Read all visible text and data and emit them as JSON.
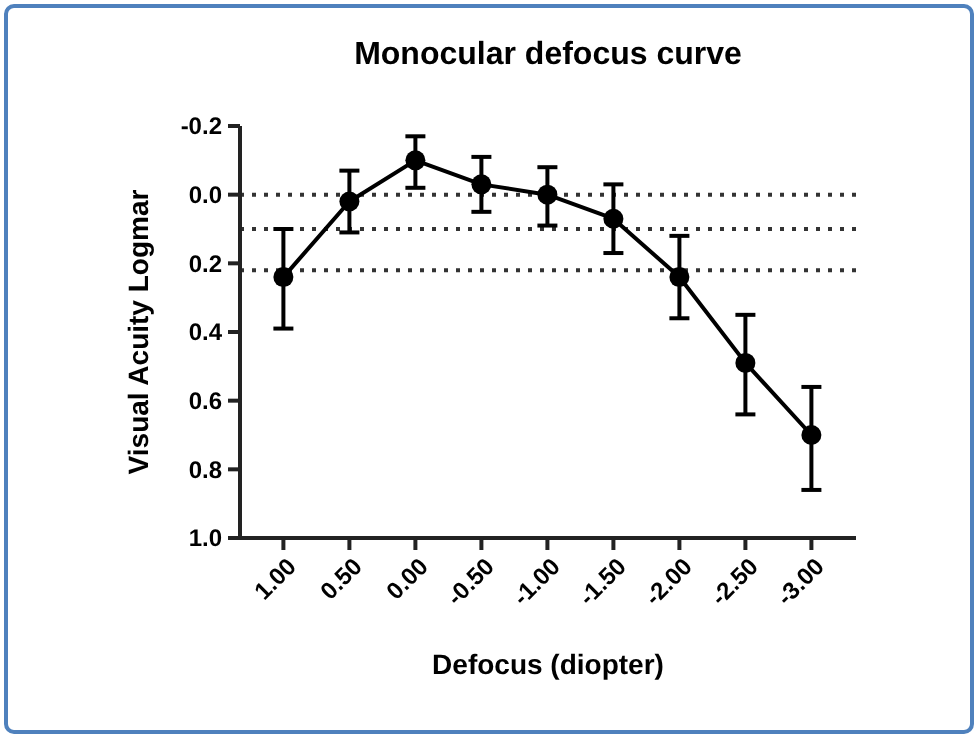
{
  "chart_data": {
    "type": "line",
    "title": "Monocular defocus curve",
    "xlabel": "Defocus (diopter)",
    "ylabel": "Visual Acuity Logmar",
    "categories": [
      "1.00",
      "0.50",
      "0.00",
      "-0.50",
      "-1.00",
      "-1.50",
      "-2.00",
      "-2.50",
      "-3.00"
    ],
    "series": [
      {
        "color": "#000000",
        "values": [
          0.24,
          0.02,
          -0.1,
          -0.03,
          0.0,
          0.07,
          0.24,
          0.49,
          0.7
        ],
        "errors": [
          [
            0.1,
            0.39
          ],
          [
            -0.07,
            0.11
          ],
          [
            -0.17,
            -0.02
          ],
          [
            -0.11,
            0.05
          ],
          [
            -0.08,
            0.09
          ],
          [
            -0.03,
            0.17
          ],
          [
            0.12,
            0.36
          ],
          [
            0.35,
            0.64
          ],
          [
            0.56,
            0.86
          ]
        ]
      }
    ],
    "ylim": [
      1.0,
      -0.2
    ],
    "yticks": [
      {
        "value": -0.2,
        "label": "-0.2"
      },
      {
        "value": 0,
        "label": "0.0"
      },
      {
        "value": 0.2,
        "label": "0.2"
      },
      {
        "value": 0.4,
        "label": "0.4"
      },
      {
        "value": 0.6,
        "label": "0.6"
      },
      {
        "value": 0.8,
        "label": "0.8"
      },
      {
        "value": 1,
        "label": "1.0"
      }
    ],
    "ref_lines": [
      {
        "axis": "y",
        "value": 0,
        "line_style": "dotted"
      },
      {
        "axis": "y",
        "value": 0.1,
        "line_style": "dotted"
      },
      {
        "axis": "y",
        "value": 0.22,
        "line_style": "dotted"
      }
    ],
    "marker": "circle",
    "line_style": "solid",
    "grid": false
  }
}
